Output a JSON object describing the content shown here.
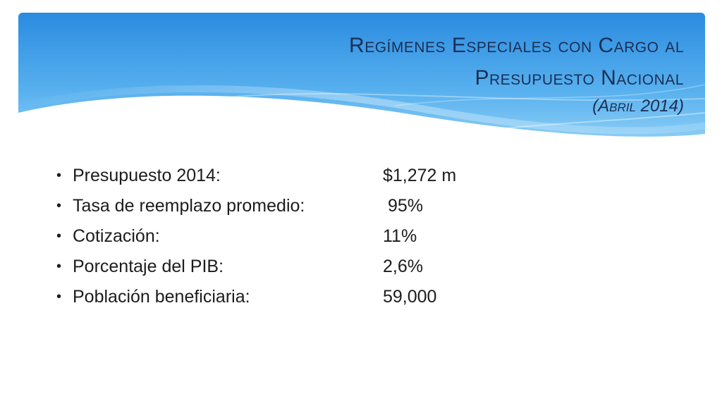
{
  "slide": {
    "title_lines": [
      "Regímenes Especiales con Cargo al",
      "Presupuesto Nacional"
    ],
    "subtitle": "(Abril 2014)",
    "items": [
      {
        "label": "Presupuesto 2014:",
        "value": "$1,272 m"
      },
      {
        "label": "Tasa de reemplazo promedio:",
        "value": " 95%"
      },
      {
        "label": "Cotización:",
        "value": "11%"
      },
      {
        "label": "Porcentaje del PIB:",
        "value": "2,6%"
      },
      {
        "label": "Población beneficiaria:",
        "value": "59,000"
      }
    ],
    "bullet": "•"
  },
  "colors": {
    "banner_top": "#2f8fe0",
    "banner_bottom": "#8fd0f7",
    "title": "#1b2f55",
    "text": "#1c1c1c"
  }
}
